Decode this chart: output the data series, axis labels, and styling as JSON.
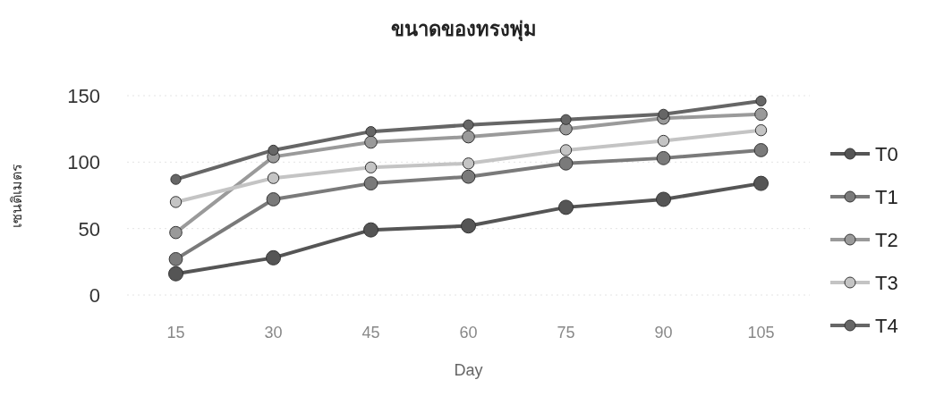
{
  "chart_data": {
    "type": "line",
    "title": "ขนาดของทรงพุ่ม",
    "xlabel": "Day",
    "ylabel": "เซนติเมตร",
    "categories": [
      "15",
      "30",
      "45",
      "60",
      "75",
      "90",
      "105"
    ],
    "series": [
      {
        "name": "T0",
        "color": "#555555",
        "values": [
          16,
          28,
          49,
          52,
          66,
          72,
          84
        ]
      },
      {
        "name": "T1",
        "color": "#7a7a7a",
        "values": [
          27,
          72,
          84,
          89,
          99,
          103,
          109
        ]
      },
      {
        "name": "T2",
        "color": "#9a9a9a",
        "values": [
          47,
          104,
          115,
          119,
          125,
          133,
          136
        ]
      },
      {
        "name": "T3",
        "color": "#c4c4c4",
        "values": [
          70,
          88,
          96,
          99,
          109,
          116,
          124
        ]
      },
      {
        "name": "T4",
        "color": "#666666",
        "values": [
          87,
          109,
          123,
          128,
          132,
          136,
          146
        ]
      }
    ],
    "ylim": [
      0,
      150
    ],
    "yticks": [
      0,
      50,
      100,
      150
    ],
    "grid": "y",
    "legend": "right",
    "marker": "circle",
    "line_style": "solid"
  }
}
